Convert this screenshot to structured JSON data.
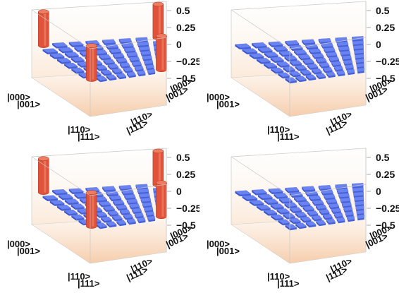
{
  "chart_data": [
    {
      "type": "bar3d",
      "row_labels": [
        "|000>",
        "|001>",
        "|110>",
        "|111>"
      ],
      "col_labels": [
        "|000>",
        "|001>",
        "|110>",
        "|111>"
      ],
      "z_ticks": [
        "0.5",
        "0.25",
        "0",
        "−0.25",
        "−0.5"
      ],
      "zlim": [
        -0.5,
        0.5
      ],
      "grid_size": 8,
      "nonzero_elements": [
        {
          "row": 0,
          "col": 0,
          "value": 0.5
        },
        {
          "row": 0,
          "col": 7,
          "value": 0.5
        },
        {
          "row": 7,
          "col": 0,
          "value": 0.5
        },
        {
          "row": 7,
          "col": 7,
          "value": 0.5
        }
      ],
      "colors": {
        "positive": "#e0523a",
        "zero": "#6a83f2"
      }
    },
    {
      "type": "bar3d",
      "row_labels": [
        "|000>",
        "|001>",
        "|110>",
        "|111>"
      ],
      "col_labels": [
        "|000>",
        "|001>",
        "|110>",
        "|111>"
      ],
      "z_ticks": [
        "0.5",
        "0.25",
        "0",
        "−0.25",
        "−0.5"
      ],
      "zlim": [
        -0.5,
        0.5
      ],
      "grid_size": 8,
      "nonzero_elements": [],
      "colors": {
        "positive": "#e0523a",
        "zero": "#6a83f2"
      }
    },
    {
      "type": "bar3d",
      "row_labels": [
        "|000>",
        "|001>",
        "|110>",
        "|111>"
      ],
      "col_labels": [
        "|000>",
        "|001>",
        "|110>",
        "|111>"
      ],
      "z_ticks": [
        "0.5",
        "0.25",
        "0",
        "−0.25",
        "−0.5"
      ],
      "zlim": [
        -0.5,
        0.5
      ],
      "grid_size": 8,
      "nonzero_elements": [
        {
          "row": 0,
          "col": 0,
          "value": 0.5
        },
        {
          "row": 0,
          "col": 7,
          "value": 0.5
        },
        {
          "row": 7,
          "col": 0,
          "value": 0.5
        },
        {
          "row": 7,
          "col": 7,
          "value": 0.5
        }
      ],
      "colors": {
        "positive": "#e0523a",
        "zero": "#6a83f2"
      }
    },
    {
      "type": "bar3d",
      "row_labels": [
        "|000>",
        "|001>",
        "|110>",
        "|111>"
      ],
      "col_labels": [
        "|000>",
        "|001>",
        "|110>",
        "|111>"
      ],
      "z_ticks": [
        "0.5",
        "0.25",
        "0",
        "−0.25",
        "−0.5"
      ],
      "zlim": [
        -0.5,
        0.5
      ],
      "grid_size": 8,
      "nonzero_elements": [],
      "colors": {
        "positive": "#e0523a",
        "zero": "#6a83f2"
      }
    }
  ]
}
